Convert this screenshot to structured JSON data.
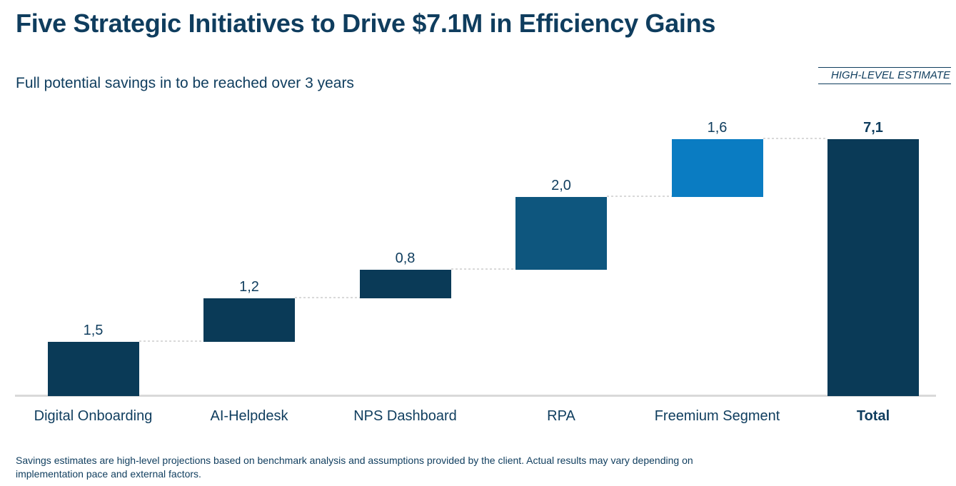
{
  "slide": {
    "title": "Five Strategic Initiatives to Drive $7.1M in Efficiency Gains",
    "subtitle": "Full potential savings in to be reached over 3 years",
    "stamp": "HIGH-LEVEL ESTIMATE",
    "footnote": "Savings estimates are high-level projections based on benchmark analysis and assumptions provided by the client. Actual results may vary depending on implementation pace and external factors."
  },
  "colors": {
    "navy": "#0a3a57",
    "medium_blue": "#0e567e",
    "bright_blue": "#0a7cc2",
    "text": "#0f3d5e",
    "line": "#d9d9d9"
  },
  "chart_data": {
    "type": "bar",
    "subtype": "waterfall",
    "title": "Five Strategic Initiatives to Drive $7.1M in Efficiency Gains",
    "xlabel": "",
    "ylabel": "",
    "categories": [
      "Digital Onboarding",
      "AI-Helpdesk",
      "NPS Dashboard",
      "RPA",
      "Freemium Segment",
      "Total"
    ],
    "values": [
      1.5,
      1.2,
      0.8,
      2.0,
      1.6,
      7.1
    ],
    "value_labels": [
      "1,5",
      "1,2",
      "0,8",
      "2,0",
      "1,6",
      "7,1"
    ],
    "starts": [
      0,
      1.5,
      2.7,
      3.5,
      5.5,
      0
    ],
    "bar_colors": [
      "navy",
      "navy",
      "navy",
      "medium_blue",
      "bright_blue",
      "navy"
    ],
    "emphasized": [
      false,
      false,
      false,
      false,
      false,
      true
    ],
    "total_index": 5,
    "ylim": [
      0,
      7.8
    ],
    "grid": false,
    "legend": false,
    "connector_style": "dotted"
  }
}
